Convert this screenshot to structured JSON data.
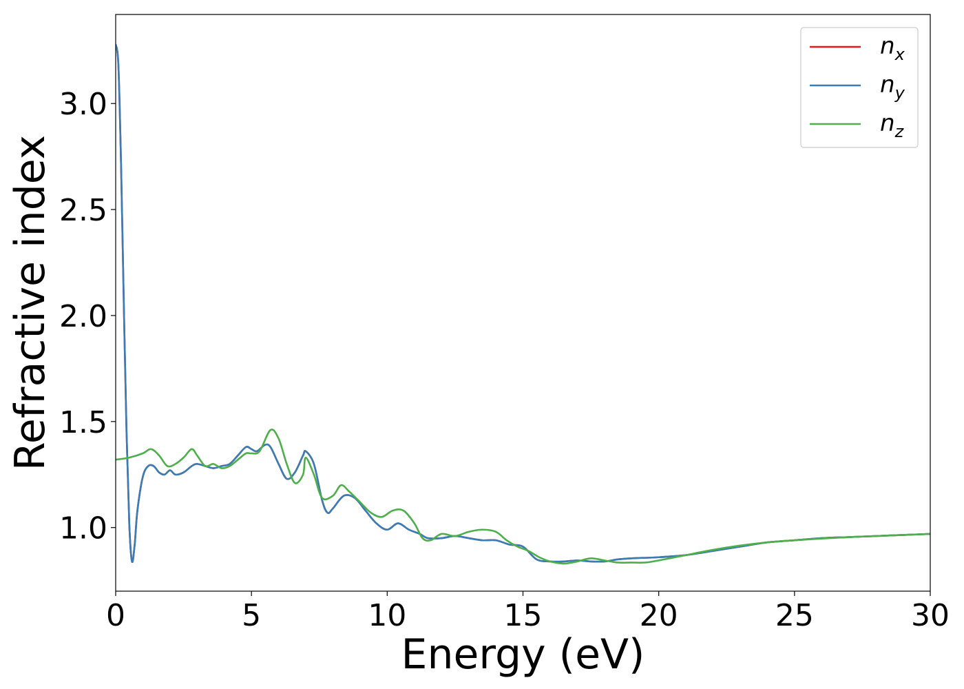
{
  "chart_data": {
    "type": "line",
    "title": "",
    "xlabel": "Energy (eV)",
    "ylabel": "Refractive index",
    "xlim": [
      0,
      30
    ],
    "ylim": [
      0.7,
      3.42
    ],
    "x_ticks": [
      "0",
      "5",
      "10",
      "15",
      "20",
      "25",
      "30"
    ],
    "x_tick_values": [
      0,
      5,
      10,
      15,
      20,
      25,
      30
    ],
    "y_ticks": [
      "1.0",
      "1.5",
      "2.0",
      "2.5",
      "3.0"
    ],
    "y_tick_values": [
      1.0,
      1.5,
      2.0,
      2.5,
      3.0
    ],
    "grid": false,
    "legend_position": "top-right",
    "series": [
      {
        "name": "n_x",
        "legend_main": "n",
        "legend_sub": "x",
        "color": "#e41a1c",
        "x": [
          0,
          0.1,
          0.2,
          0.3,
          0.4,
          0.5,
          0.6,
          0.7,
          0.8,
          1.0,
          1.2,
          1.4,
          1.6,
          1.8,
          2.0,
          2.2,
          2.5,
          2.8,
          3.0,
          3.3,
          3.6,
          3.9,
          4.2,
          4.5,
          4.8,
          5.0,
          5.2,
          5.5,
          5.7,
          6.0,
          6.3,
          6.6,
          6.9,
          7.0,
          7.3,
          7.6,
          7.8,
          8.0,
          8.4,
          8.8,
          9.2,
          9.6,
          10.0,
          10.4,
          10.8,
          11.2,
          11.5,
          12.0,
          12.5,
          13.0,
          13.5,
          14.0,
          14.5,
          15.0,
          15.5,
          16.0,
          16.5,
          17.0,
          17.5,
          18.0,
          18.5,
          19.0,
          20.0,
          21.0,
          22.0,
          23.0,
          24.0,
          25.0,
          26.0,
          27.0,
          28.0,
          29.0,
          30.0
        ],
        "y": [
          3.28,
          3.18,
          2.7,
          2.05,
          1.45,
          1.02,
          0.84,
          0.92,
          1.08,
          1.24,
          1.29,
          1.29,
          1.26,
          1.25,
          1.27,
          1.25,
          1.26,
          1.29,
          1.3,
          1.29,
          1.28,
          1.29,
          1.3,
          1.34,
          1.38,
          1.37,
          1.36,
          1.39,
          1.38,
          1.3,
          1.23,
          1.26,
          1.34,
          1.36,
          1.3,
          1.13,
          1.07,
          1.09,
          1.15,
          1.14,
          1.08,
          1.02,
          0.99,
          1.02,
          0.99,
          0.97,
          0.95,
          0.95,
          0.96,
          0.95,
          0.94,
          0.94,
          0.92,
          0.91,
          0.85,
          0.84,
          0.84,
          0.845,
          0.84,
          0.84,
          0.85,
          0.855,
          0.86,
          0.87,
          0.89,
          0.91,
          0.93,
          0.94,
          0.95,
          0.955,
          0.96,
          0.965,
          0.97
        ]
      },
      {
        "name": "n_y",
        "legend_main": "n",
        "legend_sub": "y",
        "color": "#377eb8",
        "x": [
          0,
          0.1,
          0.2,
          0.3,
          0.4,
          0.5,
          0.6,
          0.7,
          0.8,
          1.0,
          1.2,
          1.4,
          1.6,
          1.8,
          2.0,
          2.2,
          2.5,
          2.8,
          3.0,
          3.3,
          3.6,
          3.9,
          4.2,
          4.5,
          4.8,
          5.0,
          5.2,
          5.5,
          5.7,
          6.0,
          6.3,
          6.6,
          6.9,
          7.0,
          7.3,
          7.6,
          7.8,
          8.0,
          8.4,
          8.8,
          9.2,
          9.6,
          10.0,
          10.4,
          10.8,
          11.2,
          11.5,
          12.0,
          12.5,
          13.0,
          13.5,
          14.0,
          14.5,
          15.0,
          15.5,
          16.0,
          16.5,
          17.0,
          17.5,
          18.0,
          18.5,
          19.0,
          20.0,
          21.0,
          22.0,
          23.0,
          24.0,
          25.0,
          26.0,
          27.0,
          28.0,
          29.0,
          30.0
        ],
        "y": [
          3.28,
          3.18,
          2.7,
          2.05,
          1.45,
          1.02,
          0.84,
          0.92,
          1.08,
          1.24,
          1.29,
          1.29,
          1.26,
          1.25,
          1.27,
          1.25,
          1.26,
          1.29,
          1.3,
          1.29,
          1.28,
          1.29,
          1.3,
          1.34,
          1.38,
          1.37,
          1.36,
          1.39,
          1.38,
          1.3,
          1.23,
          1.26,
          1.34,
          1.36,
          1.3,
          1.13,
          1.07,
          1.09,
          1.15,
          1.14,
          1.08,
          1.02,
          0.99,
          1.02,
          0.99,
          0.97,
          0.95,
          0.95,
          0.96,
          0.95,
          0.94,
          0.94,
          0.92,
          0.91,
          0.85,
          0.84,
          0.84,
          0.845,
          0.84,
          0.84,
          0.85,
          0.855,
          0.86,
          0.87,
          0.89,
          0.91,
          0.93,
          0.94,
          0.95,
          0.955,
          0.96,
          0.965,
          0.97
        ]
      },
      {
        "name": "n_z",
        "legend_main": "n",
        "legend_sub": "z",
        "color": "#4daf4a",
        "x": [
          0,
          0.5,
          1.0,
          1.3,
          1.6,
          1.9,
          2.2,
          2.5,
          2.8,
          3.0,
          3.3,
          3.6,
          3.9,
          4.2,
          4.5,
          4.8,
          5.0,
          5.3,
          5.7,
          6.0,
          6.3,
          6.6,
          6.9,
          7.0,
          7.3,
          7.6,
          8.0,
          8.3,
          8.6,
          9.0,
          9.4,
          9.8,
          10.2,
          10.6,
          11.0,
          11.3,
          11.6,
          12.0,
          12.5,
          13.0,
          13.5,
          14.0,
          14.4,
          14.8,
          15.2,
          15.6,
          16.0,
          16.5,
          17.0,
          17.5,
          18.0,
          18.5,
          19.0,
          19.5,
          20.0,
          21.0,
          22.0,
          23.0,
          24.0,
          25.0,
          26.0,
          27.0,
          28.0,
          29.0,
          30.0
        ],
        "y": [
          1.32,
          1.33,
          1.35,
          1.37,
          1.34,
          1.29,
          1.3,
          1.33,
          1.37,
          1.34,
          1.29,
          1.3,
          1.28,
          1.29,
          1.32,
          1.35,
          1.35,
          1.36,
          1.46,
          1.42,
          1.3,
          1.21,
          1.25,
          1.33,
          1.25,
          1.14,
          1.15,
          1.2,
          1.17,
          1.12,
          1.07,
          1.05,
          1.08,
          1.08,
          1.02,
          0.95,
          0.94,
          0.97,
          0.96,
          0.98,
          0.99,
          0.98,
          0.94,
          0.91,
          0.89,
          0.86,
          0.84,
          0.83,
          0.84,
          0.855,
          0.845,
          0.835,
          0.835,
          0.835,
          0.845,
          0.87,
          0.895,
          0.915,
          0.93,
          0.94,
          0.948,
          0.955,
          0.96,
          0.965,
          0.97
        ]
      }
    ]
  }
}
